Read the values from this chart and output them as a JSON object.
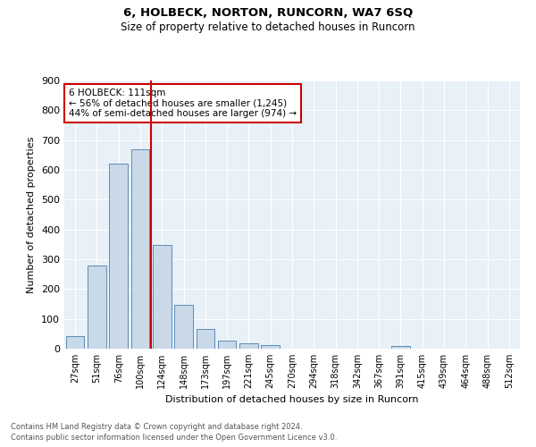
{
  "title1": "6, HOLBECK, NORTON, RUNCORN, WA7 6SQ",
  "title2": "Size of property relative to detached houses in Runcorn",
  "xlabel": "Distribution of detached houses by size in Runcorn",
  "ylabel": "Number of detached properties",
  "bar_labels": [
    "27sqm",
    "51sqm",
    "76sqm",
    "100sqm",
    "124sqm",
    "148sqm",
    "173sqm",
    "197sqm",
    "221sqm",
    "245sqm",
    "270sqm",
    "294sqm",
    "318sqm",
    "342sqm",
    "367sqm",
    "391sqm",
    "415sqm",
    "439sqm",
    "464sqm",
    "488sqm",
    "512sqm"
  ],
  "bar_values": [
    42,
    278,
    621,
    670,
    349,
    148,
    65,
    28,
    17,
    12,
    0,
    0,
    0,
    0,
    0,
    9,
    0,
    0,
    0,
    0,
    0
  ],
  "bar_color": "#c9d9e8",
  "bar_edge_color": "#5b8db8",
  "bg_color": "#e8f0f8",
  "grid_color": "#ffffff",
  "vline_x": 3.5,
  "vline_color": "#cc0000",
  "annotation_text": "6 HOLBECK: 111sqm\n← 56% of detached houses are smaller (1,245)\n44% of semi-detached houses are larger (974) →",
  "annotation_box_color": "#ffffff",
  "annotation_box_edge": "#cc0000",
  "footer_line1": "Contains HM Land Registry data © Crown copyright and database right 2024.",
  "footer_line2": "Contains public sector information licensed under the Open Government Licence v3.0.",
  "ylim": [
    0,
    900
  ],
  "yticks": [
    0,
    100,
    200,
    300,
    400,
    500,
    600,
    700,
    800,
    900
  ]
}
